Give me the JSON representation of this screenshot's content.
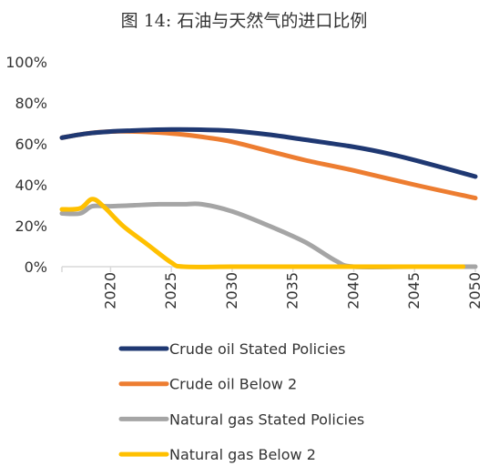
{
  "chart_data": {
    "type": "line",
    "title": "图 14: 石油与天然气的进口比例",
    "xlabel": "",
    "ylabel": "",
    "xlim": [
      2016,
      2050
    ],
    "ylim": [
      0,
      100
    ],
    "x_ticks": [
      2020,
      2025,
      2030,
      2035,
      2040,
      2045,
      2050
    ],
    "y_ticks": [
      "0%",
      "20%",
      "40%",
      "60%",
      "80%",
      "100%"
    ],
    "grid": false,
    "legend_position": "bottom",
    "series": [
      {
        "name": "Crude oil Stated Policies",
        "color": "#1f3872",
        "x": [
          2016,
          2018,
          2020,
          2022,
          2025,
          2028,
          2030,
          2033,
          2036,
          2040,
          2043,
          2046,
          2050
        ],
        "values": [
          63,
          65,
          66,
          66.5,
          67,
          66.8,
          66.3,
          64.5,
          62,
          58.5,
          55,
          50.5,
          44
        ]
      },
      {
        "name": "Crude oil Below 2",
        "color": "#ed7d31",
        "x": [
          2016,
          2018,
          2020,
          2022,
          2024,
          2026,
          2028,
          2030,
          2033,
          2036,
          2040,
          2045,
          2050
        ],
        "values": [
          63,
          65,
          66,
          66,
          65.5,
          64.5,
          63,
          61,
          56.5,
          52,
          47,
          40,
          33.5
        ]
      },
      {
        "name": "Natural gas Stated Policies",
        "color": "#a5a5a5",
        "x": [
          2016,
          2017.5,
          2018.5,
          2020,
          2022,
          2024,
          2026,
          2027.5,
          2030,
          2033,
          2036,
          2038.5,
          2040,
          2045,
          2050
        ],
        "values": [
          26,
          26,
          29.5,
          29.5,
          30,
          30.5,
          30.5,
          30.5,
          27,
          20,
          12,
          3,
          0,
          0,
          0
        ]
      },
      {
        "name": "Natural gas Below 2",
        "color": "#ffc000",
        "x": [
          2016,
          2017.5,
          2018.5,
          2019.5,
          2021,
          2023,
          2025,
          2026,
          2030,
          2035,
          2040,
          2045,
          2049
        ],
        "values": [
          28,
          28.5,
          33,
          29,
          20,
          11,
          2,
          0,
          0,
          0,
          0,
          0,
          0
        ]
      }
    ]
  }
}
